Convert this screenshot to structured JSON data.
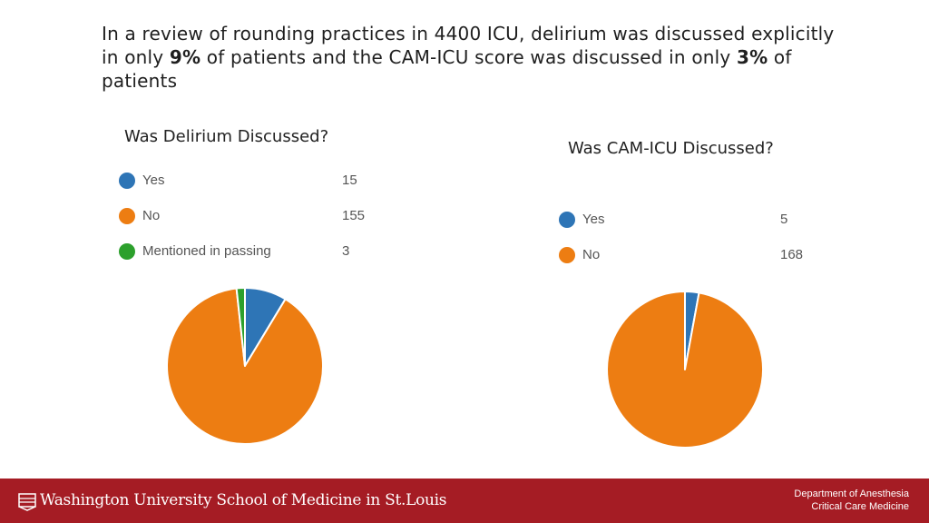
{
  "headline": {
    "part1": "In a review of rounding practices in 4400 ICU, delirium was discussed explicitly in only ",
    "pct1": "9%",
    "part2": " of patients and the CAM-ICU score was discussed in only ",
    "pct2": "3%",
    "part3": " of patients"
  },
  "chart_data": [
    {
      "type": "pie",
      "title": "Was Delirium Discussed?",
      "categories": [
        "Yes",
        "No",
        "Mentioned in passing"
      ],
      "values": [
        15,
        155,
        3
      ],
      "colors": [
        "#2e75b6",
        "#ed7d12",
        "#2ca02c"
      ],
      "legend_position": "top"
    },
    {
      "type": "pie",
      "title": "Was CAM-ICU Discussed?",
      "categories": [
        "Yes",
        "No"
      ],
      "values": [
        5,
        168
      ],
      "colors": [
        "#2e75b6",
        "#ed7d12"
      ],
      "legend_position": "top"
    }
  ],
  "footer": {
    "institution": "Washington University School of Medicine in St.Louis",
    "dept_line1": "Department of Anesthesia",
    "dept_line2": "Critical Care Medicine",
    "color": "#a51c24"
  }
}
